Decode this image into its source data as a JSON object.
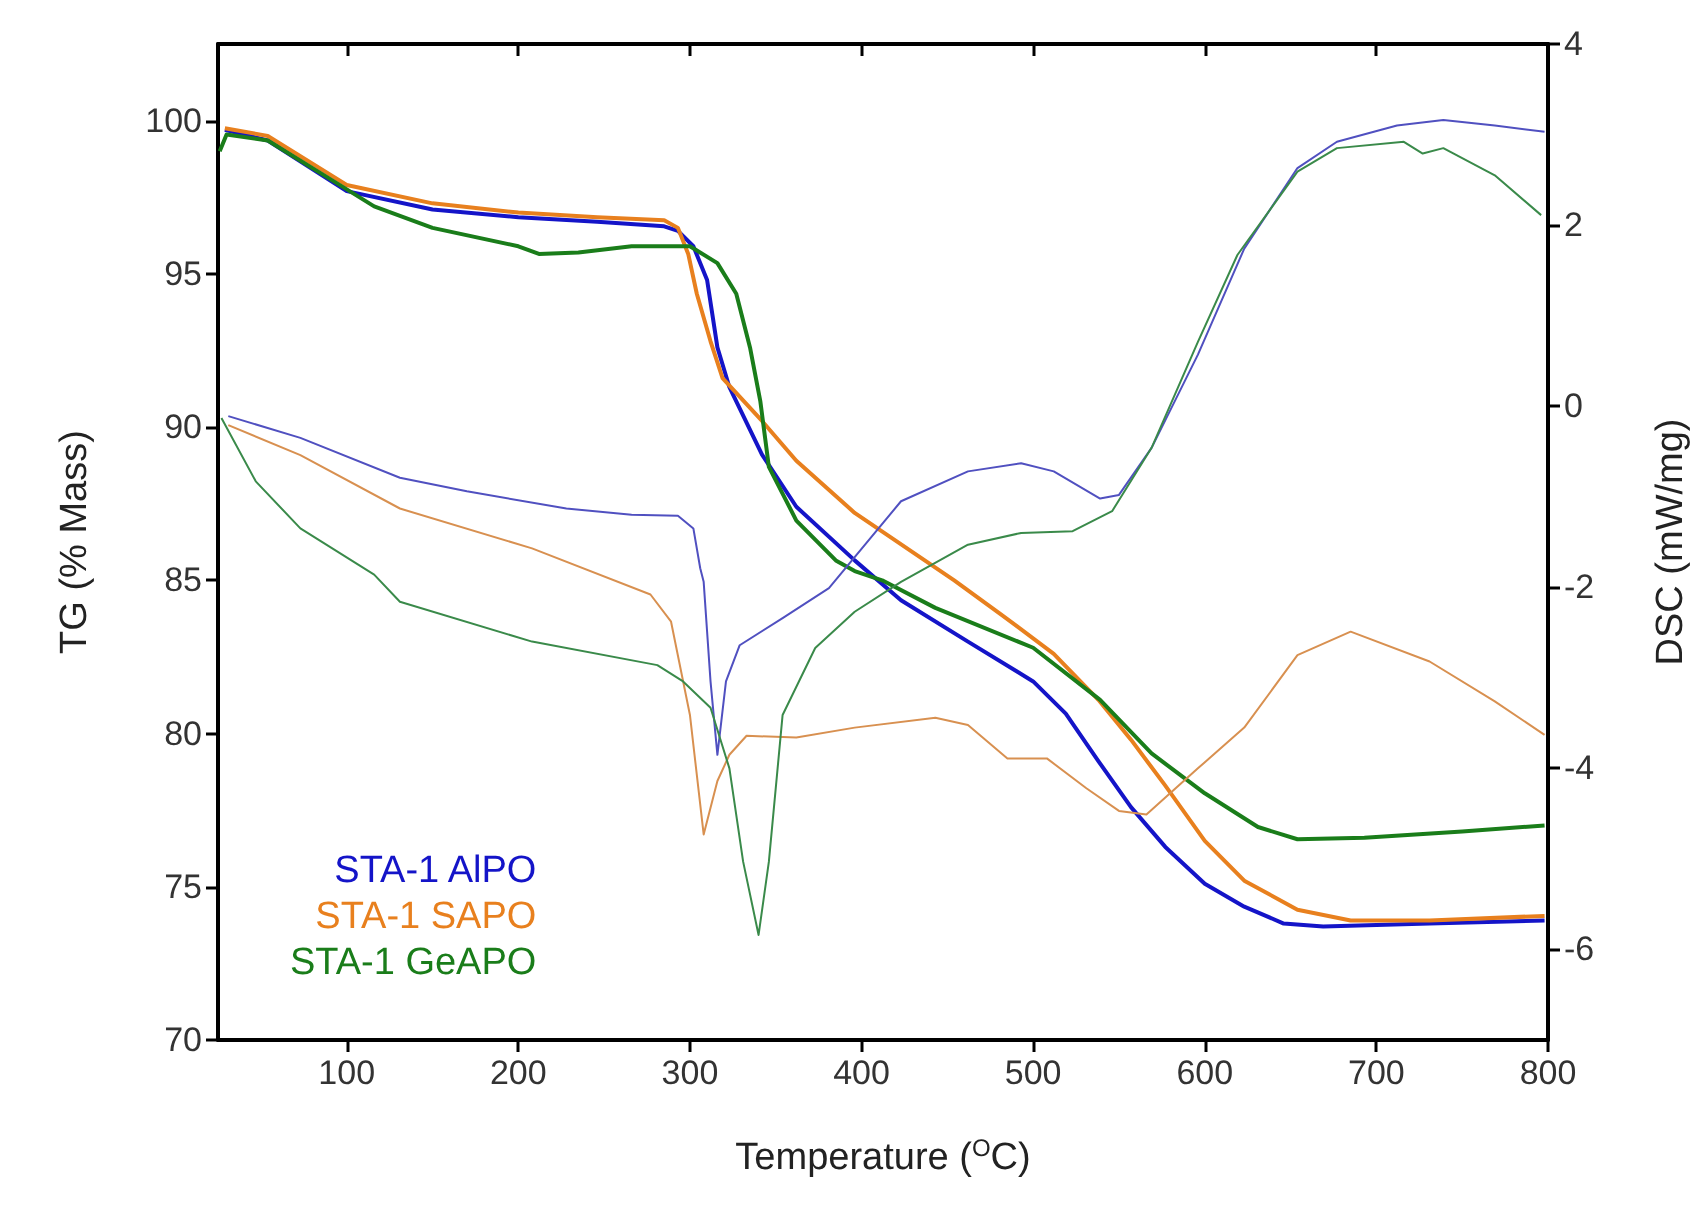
{
  "chart_data": {
    "type": "line",
    "xlabel": "Temperature ($^{O}$C)",
    "ylabel": "TG (% Mass)",
    "y2label": "DSC (mW/mg)",
    "xlim": [
      25,
      800
    ],
    "xticks": [
      100,
      200,
      300,
      400,
      500,
      600,
      700,
      800
    ],
    "ylim": [
      70,
      102.5
    ],
    "yticks": [
      70,
      75,
      80,
      85,
      90,
      95,
      100
    ],
    "y2lim": [
      -7,
      4
    ],
    "y2ticks": [
      -6,
      -4,
      -2,
      0,
      2,
      4
    ],
    "grid": false,
    "legend": "bottom left",
    "marker": "none",
    "series": [
      {
        "name": "STA-1 AlPO",
        "color": "#1414c8",
        "x": [
          29,
          54,
          100,
          150,
          200,
          246,
          285,
          293,
          302,
          310,
          316,
          323,
          342,
          362,
          396,
          423,
          462,
          500,
          519,
          538,
          557,
          577,
          600,
          623,
          646,
          669,
          731,
          798
        ],
        "values": [
          99.7,
          99.35,
          97.7,
          97.1,
          96.85,
          96.7,
          96.55,
          96.4,
          95.9,
          94.8,
          92.6,
          91.3,
          89.1,
          87.4,
          85.65,
          84.35,
          83.0,
          81.7,
          80.65,
          79.1,
          77.6,
          76.3,
          75.1,
          74.35,
          73.8,
          73.7,
          73.8,
          73.9
        ]
      },
      {
        "name": "STA-1 SAPO",
        "color": "#e8801e",
        "x": [
          29,
          54,
          100,
          150,
          200,
          246,
          285,
          293,
          299,
          304,
          312,
          319,
          342,
          362,
          396,
          454,
          481,
          512,
          538,
          557,
          577,
          600,
          623,
          654,
          685,
          731,
          798
        ],
        "values": [
          99.75,
          99.5,
          97.9,
          97.3,
          97.0,
          96.85,
          96.75,
          96.5,
          95.65,
          94.35,
          92.8,
          91.6,
          90.2,
          88.9,
          87.2,
          85.0,
          83.9,
          82.6,
          81.1,
          79.8,
          78.3,
          76.5,
          75.2,
          74.25,
          73.9,
          73.9,
          74.05
        ]
      },
      {
        "name": "STA-1 GeAPO",
        "color": "#1a7d1a",
        "x": [
          26,
          30,
          54,
          93,
          116,
          150,
          200,
          212,
          235,
          266,
          300,
          316,
          327,
          335,
          341,
          346,
          362,
          385,
          396,
          412,
          443,
          500,
          539,
          569,
          600,
          631,
          654,
          693,
          750,
          798
        ],
        "values": [
          99.0,
          99.55,
          99.35,
          98.0,
          97.2,
          96.5,
          95.9,
          95.65,
          95.7,
          95.9,
          95.9,
          95.35,
          94.35,
          92.6,
          90.85,
          88.7,
          86.95,
          85.65,
          85.3,
          85.0,
          84.1,
          82.8,
          81.1,
          79.35,
          78.05,
          76.95,
          76.55,
          76.6,
          76.8,
          77.0
        ]
      },
      {
        "color": "#5050c0",
        "axis": "y2",
        "x": [
          31,
          73,
          131,
          170,
          228,
          266,
          293,
          302,
          306,
          308,
          312,
          316,
          321,
          329,
          354,
          381,
          423,
          462,
          493,
          512,
          539,
          550,
          569,
          596,
          623,
          654,
          677,
          712,
          739,
          769,
          798
        ],
        "values": [
          -0.11,
          -0.35,
          -0.79,
          -0.94,
          -1.13,
          -1.2,
          -1.21,
          -1.35,
          -1.79,
          -1.94,
          -3.04,
          -3.85,
          -3.04,
          -2.64,
          -2.34,
          -2.01,
          -1.05,
          -0.72,
          -0.63,
          -0.72,
          -1.02,
          -0.98,
          -0.46,
          0.57,
          1.74,
          2.63,
          2.92,
          3.1,
          3.16,
          3.1,
          3.03
        ]
      },
      {
        "color": "#d89050",
        "axis": "y2",
        "x": [
          31,
          73,
          131,
          208,
          277,
          289,
          300,
          308,
          316,
          323,
          333,
          362,
          396,
          443,
          462,
          485,
          508,
          531,
          550,
          566,
          596,
          623,
          654,
          685,
          731,
          769,
          798
        ],
        "values": [
          -0.21,
          -0.54,
          -1.13,
          -1.57,
          -2.08,
          -2.38,
          -3.41,
          -4.73,
          -4.14,
          -3.85,
          -3.64,
          -3.66,
          -3.55,
          -3.44,
          -3.52,
          -3.89,
          -3.89,
          -4.22,
          -4.47,
          -4.51,
          -4.0,
          -3.55,
          -2.75,
          -2.49,
          -2.82,
          -3.26,
          -3.63
        ]
      },
      {
        "color": "#3a8a4a",
        "axis": "y2",
        "x": [
          27,
          47,
          73,
          116,
          131,
          208,
          281,
          296,
          312,
          323,
          331,
          340,
          346,
          354,
          373,
          396,
          423,
          462,
          493,
          523,
          546,
          569,
          596,
          619,
          654,
          677,
          716,
          727,
          739,
          769,
          796
        ],
        "values": [
          -0.13,
          -0.83,
          -1.35,
          -1.86,
          -2.16,
          -2.6,
          -2.86,
          -3.04,
          -3.33,
          -4.0,
          -5.03,
          -5.84,
          -5.03,
          -3.41,
          -2.67,
          -2.27,
          -1.94,
          -1.53,
          -1.4,
          -1.38,
          -1.16,
          -0.46,
          0.71,
          1.67,
          2.59,
          2.85,
          2.92,
          2.79,
          2.85,
          2.55,
          2.11
        ]
      }
    ]
  }
}
